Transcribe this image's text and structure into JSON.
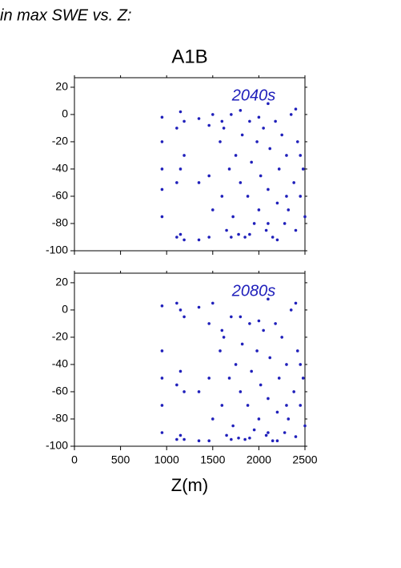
{
  "header": {
    "title": "in max SWE vs. Z:",
    "scenario": "A1B"
  },
  "chart_data": [
    {
      "type": "scatter",
      "annotation": "2040s",
      "color": "#2020bb",
      "x": [
        950,
        950,
        950,
        950,
        950,
        1110,
        1110,
        1110,
        1150,
        1150,
        1150,
        1190,
        1190,
        1190,
        1350,
        1350,
        1350,
        1460,
        1460,
        1460,
        1500,
        1500,
        1580,
        1600,
        1620,
        1650,
        1680,
        1700,
        1720,
        1750,
        1780,
        1800,
        1820,
        1850,
        1880,
        1900,
        1920,
        1950,
        1980,
        2000,
        2020,
        2050,
        2080,
        2100,
        2100,
        2120,
        2150,
        2180,
        2200,
        2220,
        2250,
        2280,
        2300,
        2320,
        2350,
        2380,
        2400,
        2420,
        2450,
        2480,
        2500,
        1600,
        1700,
        1800,
        1900,
        2000,
        2100,
        2200,
        2300,
        2400,
        2450
      ],
      "y": [
        -2,
        -20,
        -40,
        -55,
        -75,
        -10,
        -50,
        -90,
        2,
        -40,
        -88,
        -5,
        -30,
        -92,
        -3,
        -50,
        -92,
        -8,
        -45,
        -90,
        0,
        -70,
        -20,
        -60,
        -10,
        -85,
        -40,
        0,
        -75,
        -30,
        -88,
        -50,
        -15,
        -90,
        -60,
        -5,
        -35,
        -80,
        -20,
        -70,
        -45,
        -10,
        -85,
        8,
        -55,
        -25,
        -90,
        -5,
        -65,
        -40,
        -15,
        -80,
        -30,
        -70,
        0,
        -50,
        -85,
        -20,
        -60,
        -40,
        -75,
        -5,
        -90,
        3,
        -88,
        -2,
        -80,
        -92,
        -60,
        4,
        -30
      ],
      "xlim": [
        0,
        2500
      ],
      "ylim": [
        -100,
        27
      ],
      "xticks": [
        0,
        500,
        1000,
        1500,
        2000,
        2500
      ],
      "yticks": [
        -100,
        -80,
        -60,
        -40,
        -20,
        0,
        20
      ]
    },
    {
      "type": "scatter",
      "annotation": "2080s",
      "color": "#2020bb",
      "xlabel": "Z(m)",
      "x": [
        950,
        950,
        950,
        950,
        950,
        1110,
        1110,
        1110,
        1150,
        1150,
        1150,
        1190,
        1190,
        1190,
        1350,
        1350,
        1350,
        1460,
        1460,
        1460,
        1500,
        1500,
        1580,
        1600,
        1620,
        1650,
        1680,
        1700,
        1720,
        1750,
        1780,
        1800,
        1820,
        1850,
        1880,
        1900,
        1920,
        1950,
        1980,
        2000,
        2020,
        2050,
        2080,
        2100,
        2100,
        2120,
        2150,
        2180,
        2200,
        2220,
        2250,
        2280,
        2300,
        2320,
        2350,
        2380,
        2400,
        2420,
        2450,
        2480,
        2500,
        1600,
        1700,
        1800,
        1900,
        2000,
        2100,
        2200,
        2300,
        2400,
        2450
      ],
      "y": [
        3,
        -30,
        -50,
        -70,
        -90,
        5,
        -55,
        -95,
        0,
        -45,
        -92,
        -5,
        -60,
        -95,
        2,
        -60,
        -96,
        -10,
        -50,
        -96,
        5,
        -80,
        -30,
        -70,
        -20,
        -92,
        -50,
        -5,
        -85,
        -40,
        -94,
        -60,
        -25,
        -95,
        -70,
        -10,
        -45,
        -88,
        -30,
        -80,
        -55,
        -15,
        -92,
        8,
        -65,
        -35,
        -96,
        -10,
        -75,
        -50,
        -20,
        -90,
        -40,
        -80,
        0,
        -60,
        -93,
        -30,
        -70,
        -50,
        -85,
        -15,
        -95,
        -5,
        -94,
        -8,
        -90,
        -96,
        -70,
        5,
        -40
      ],
      "xlim": [
        0,
        2500
      ],
      "ylim": [
        -100,
        27
      ],
      "xticks": [
        0,
        500,
        1000,
        1500,
        2000,
        2500
      ],
      "yticks": [
        -100,
        -80,
        -60,
        -40,
        -20,
        0,
        20
      ]
    }
  ]
}
